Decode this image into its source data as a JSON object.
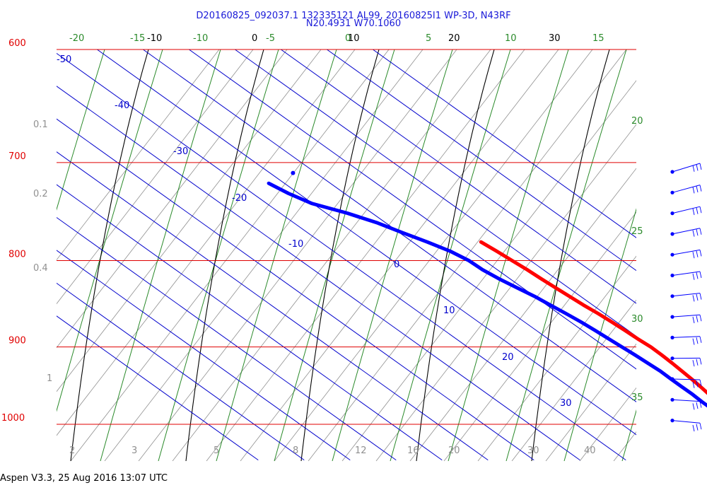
{
  "header": {
    "line1": "D20160825_092037.1 132335121 AL99, 20160825I1 WP-3D, N43RF",
    "line2": "N20.4931 W70.1060"
  },
  "footer": "Aspen V3.3, 25 Aug 2016  13:07 UTC",
  "colors": {
    "isobar": "#e00000",
    "isotherm": "#0000cc",
    "dry_adiabat": "#000000",
    "moist_adiabat": "#2a8a2a",
    "mixing_ratio": "#909090",
    "temperature": "#ff0000",
    "dewpoint": "#0000ff"
  },
  "chart_data": {
    "type": "line",
    "title": "",
    "xlabel": "",
    "ylabel": "",
    "ylim": [
      1050,
      600
    ],
    "y_scale": "log-pressure",
    "isobars": {
      "values": [
        600,
        700,
        800,
        900,
        1000
      ],
      "labels": [
        "600",
        "700",
        "800",
        "900",
        "1000"
      ]
    },
    "isotherms": {
      "values": [
        -50,
        -40,
        -30,
        -20,
        -10,
        0,
        10,
        20,
        30
      ],
      "labels": [
        "-50",
        "-40",
        "-30",
        "-20",
        "-10",
        "0",
        "10",
        "20",
        "30"
      ]
    },
    "dry_adiabat_labels": [
      "-10",
      "0",
      "10",
      "20",
      "30"
    ],
    "moist_adiabat_labels": [
      "-20",
      "-15",
      "-10",
      "-5",
      "0",
      "5",
      "10",
      "15",
      "20",
      "25",
      "30",
      "35"
    ],
    "mixing_ratio_labels": [
      "0.1",
      "0.2",
      "0.4",
      "1",
      "2",
      "3",
      "5",
      "8",
      "12",
      "16",
      "20",
      "30",
      "40"
    ],
    "series": [
      {
        "name": "Temperature",
        "color": "#ff0000",
        "points": [
          [
            1020,
            26.4
          ],
          [
            1000,
            26.3
          ],
          [
            990,
            26.5
          ],
          [
            980,
            27.0
          ],
          [
            970,
            27.6
          ],
          [
            960,
            28.1
          ],
          [
            950,
            28.6
          ],
          [
            940,
            29.0
          ],
          [
            930,
            29.3
          ],
          [
            920,
            29.6
          ],
          [
            910,
            29.8
          ],
          [
            900,
            29.9
          ],
          [
            890,
            29.5
          ],
          [
            880,
            29.3
          ],
          [
            870,
            29.0
          ],
          [
            860,
            28.6
          ],
          [
            850,
            28.0
          ],
          [
            840,
            27.6
          ],
          [
            830,
            27.2
          ],
          [
            820,
            26.8
          ],
          [
            810,
            26.5
          ],
          [
            800,
            26.0
          ],
          [
            790,
            25.5
          ],
          [
            780,
            24.9
          ]
        ]
      },
      {
        "name": "Dewpoint",
        "color": "#0000ff",
        "points": [
          [
            1020,
            23.8
          ],
          [
            1010,
            24.3
          ],
          [
            1000,
            24.4
          ],
          [
            990,
            24.3
          ],
          [
            980,
            24.3
          ],
          [
            970,
            24.3
          ],
          [
            960,
            24.5
          ],
          [
            950,
            24.5
          ],
          [
            940,
            24.5
          ],
          [
            930,
            24.6
          ],
          [
            920,
            24.3
          ],
          [
            910,
            24.0
          ],
          [
            900,
            23.6
          ],
          [
            890,
            23.2
          ],
          [
            880,
            22.8
          ],
          [
            870,
            22.3
          ],
          [
            860,
            21.6
          ],
          [
            850,
            20.8
          ],
          [
            840,
            20.0
          ],
          [
            830,
            18.8
          ],
          [
            820,
            17.6
          ],
          [
            810,
            16.8
          ],
          [
            800,
            16.6
          ],
          [
            790,
            15.4
          ],
          [
            780,
            13.2
          ],
          [
            770,
            10.6
          ],
          [
            760,
            8.2
          ],
          [
            750,
            4.6
          ],
          [
            740,
            -0.2
          ],
          [
            730,
            -2.2
          ],
          [
            720,
            -3.4
          ]
        ]
      }
    ],
    "isolated_point": {
      "p": 710,
      "t": 5.0,
      "color": "#0000ff"
    },
    "wind_barb_pressures": [
      730,
      760,
      790,
      815,
      840,
      865,
      890,
      915,
      940,
      965,
      990,
      1015,
      1035
    ]
  }
}
